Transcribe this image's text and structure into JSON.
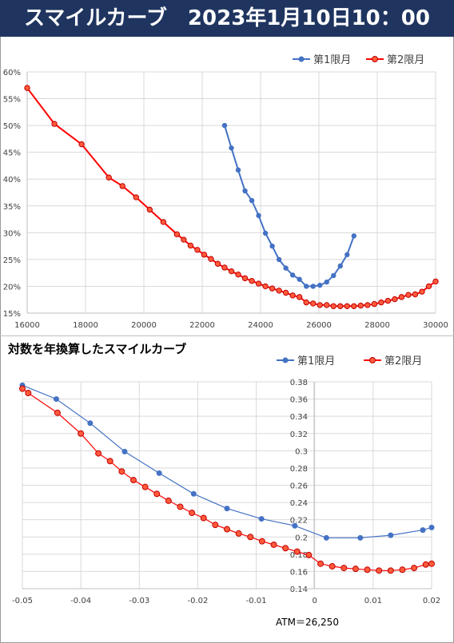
{
  "header": {
    "title": "スマイルカーブ　2023年1月10日10：00"
  },
  "subtitle": "対数を年換算したスマイルカーブ",
  "atm_note": "ATM＝26,250",
  "colors": {
    "first": "#4472c4",
    "second": "#ff0000",
    "banner": "#1f3560"
  },
  "chart_data": [
    {
      "type": "line",
      "xlim": [
        16000,
        31000
      ],
      "ylim": [
        0.15,
        0.6
      ],
      "xticks": [
        "16000",
        "18000",
        "20000",
        "22000",
        "24000",
        "26000",
        "28000",
        "30000"
      ],
      "yticks": [
        "15%",
        "20%",
        "25%",
        "30%",
        "35%",
        "40%",
        "45%",
        "50%",
        "55%",
        "60%"
      ],
      "legend": "top-right",
      "grid": true,
      "series": [
        {
          "name": "第1限月",
          "x": [
            23250,
            23500,
            23750,
            24000,
            24250,
            24500,
            24750,
            25000,
            25250,
            25500,
            25750,
            26000,
            26250,
            26500,
            26750,
            27000,
            27250,
            27500,
            27750,
            28000
          ],
          "y": [
            0.5,
            0.458,
            0.417,
            0.378,
            0.36,
            0.332,
            0.299,
            0.275,
            0.25,
            0.234,
            0.221,
            0.213,
            0.2,
            0.2,
            0.202,
            0.208,
            0.22,
            0.238,
            0.259,
            0.294
          ]
        },
        {
          "name": "第2限月",
          "x": [
            16000,
            17000,
            18000,
            19000,
            19500,
            20000,
            20500,
            21000,
            21500,
            21750,
            22000,
            22250,
            22500,
            22750,
            23000,
            23250,
            23500,
            23750,
            24000,
            24250,
            24500,
            24750,
            25000,
            25250,
            25500,
            25750,
            26000,
            26250,
            26500,
            26750,
            27000,
            27250,
            27500,
            27750,
            28000,
            28250,
            28500,
            28750,
            29000,
            29250,
            29500,
            29750,
            30000,
            30250,
            30500,
            30750,
            31000
          ],
          "y": [
            0.57,
            0.503,
            0.465,
            0.403,
            0.387,
            0.366,
            0.343,
            0.32,
            0.297,
            0.287,
            0.276,
            0.268,
            0.259,
            0.251,
            0.242,
            0.235,
            0.228,
            0.222,
            0.215,
            0.21,
            0.205,
            0.2,
            0.196,
            0.192,
            0.188,
            0.183,
            0.18,
            0.17,
            0.168,
            0.165,
            0.165,
            0.163,
            0.163,
            0.163,
            0.163,
            0.164,
            0.165,
            0.167,
            0.17,
            0.173,
            0.176,
            0.18,
            0.184,
            0.185,
            0.19,
            0.2,
            0.209
          ]
        }
      ]
    },
    {
      "type": "line",
      "xlim": [
        -0.05,
        0.02
      ],
      "ylim": [
        0.14,
        0.38
      ],
      "xticks": [
        "-0.05",
        "-0.04",
        "-0.03",
        "-0.02",
        "-0.01",
        "0",
        "0.01",
        "0.02"
      ],
      "yticks": [
        "0.14",
        "0.16",
        "0.18",
        "0.2",
        "0.22",
        "0.24",
        "0.26",
        "0.28",
        "0.3",
        "0.32",
        "0.34",
        "0.36",
        "0.38"
      ],
      "legend": "top-right",
      "grid": true,
      "series": [
        {
          "name": "第1限月",
          "x": [
            -0.05,
            -0.0442,
            -0.0384,
            -0.0325,
            -0.0266,
            -0.0207,
            -0.015,
            -0.0091,
            -0.0034,
            0.002,
            0.0078,
            0.013,
            0.0185,
            0.02
          ],
          "y": [
            0.376,
            0.36,
            0.332,
            0.299,
            0.274,
            0.25,
            0.233,
            0.221,
            0.213,
            0.199,
            0.199,
            0.202,
            0.208,
            0.211
          ]
        },
        {
          "name": "第2限月",
          "x": [
            -0.05,
            -0.049,
            -0.044,
            -0.04,
            -0.037,
            -0.035,
            -0.033,
            -0.031,
            -0.029,
            -0.027,
            -0.025,
            -0.023,
            -0.021,
            -0.019,
            -0.017,
            -0.015,
            -0.013,
            -0.011,
            -0.009,
            -0.007,
            -0.005,
            -0.003,
            -0.001,
            0.001,
            0.003,
            0.005,
            0.007,
            0.009,
            0.011,
            0.013,
            0.015,
            0.017,
            0.019,
            0.02
          ],
          "y": [
            0.372,
            0.367,
            0.344,
            0.32,
            0.297,
            0.288,
            0.276,
            0.266,
            0.258,
            0.25,
            0.242,
            0.235,
            0.228,
            0.222,
            0.214,
            0.209,
            0.204,
            0.2,
            0.195,
            0.191,
            0.187,
            0.183,
            0.179,
            0.169,
            0.166,
            0.164,
            0.163,
            0.162,
            0.161,
            0.161,
            0.162,
            0.164,
            0.168,
            0.169
          ]
        }
      ]
    }
  ]
}
